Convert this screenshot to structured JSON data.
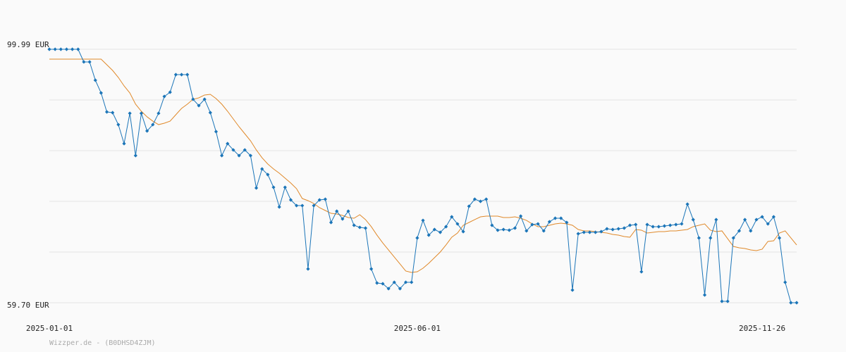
{
  "chart_data": {
    "type": "line",
    "source": "Wizzper.de - (B0DHSD4ZJM)",
    "categories": [
      "2025-01-01",
      null,
      null,
      null,
      null,
      null,
      null,
      null,
      null,
      null,
      null,
      null,
      null,
      null,
      null,
      null,
      null,
      null,
      null,
      null,
      null,
      null,
      null,
      null,
      null,
      null,
      null,
      null,
      null,
      null,
      null,
      null,
      null,
      null,
      null,
      null,
      null,
      null,
      null,
      null,
      null,
      null,
      null,
      null,
      null,
      null,
      null,
      null,
      null,
      null,
      null,
      null,
      null,
      null,
      null,
      null,
      null,
      null,
      null,
      null,
      null,
      null,
      null,
      null,
      "2025-06-01",
      null,
      null,
      null,
      null,
      null,
      null,
      null,
      null,
      null,
      null,
      null,
      null,
      null,
      null,
      null,
      null,
      null,
      null,
      null,
      null,
      null,
      null,
      null,
      null,
      null,
      null,
      null,
      null,
      null,
      null,
      null,
      null,
      null,
      null,
      null,
      null,
      null,
      null,
      null,
      null,
      null,
      null,
      null,
      null,
      null,
      null,
      null,
      null,
      null,
      null,
      null,
      null,
      null,
      null,
      null,
      null,
      null,
      null,
      null,
      "2025-11-26",
      null,
      null,
      null,
      null,
      null,
      null
    ],
    "series": [
      {
        "color": "#1b75b8",
        "markers": true,
        "values": [
          99.99,
          99.99,
          99.99,
          99.99,
          99.99,
          99.99,
          97.98,
          97.98,
          95.07,
          93.05,
          90.03,
          89.92,
          88.01,
          84.99,
          89.81,
          83.09,
          89.81,
          87.01,
          88.01,
          89.81,
          92.49,
          93.16,
          95.96,
          95.96,
          95.96,
          92.04,
          91.04,
          92.04,
          89.92,
          86.9,
          83.09,
          84.99,
          83.99,
          83.09,
          83.99,
          83.09,
          77.94,
          80.96,
          80.07,
          78.05,
          74.92,
          78.05,
          76.04,
          75.14,
          75.14,
          65.07,
          75.14,
          76.04,
          76.15,
          72.46,
          74.25,
          73.02,
          74.25,
          72.01,
          71.68,
          71.56,
          65.07,
          62.83,
          62.72,
          61.94,
          62.95,
          61.94,
          62.95,
          62.95,
          70.0,
          72.79,
          70.44,
          71.34,
          70.89,
          71.79,
          73.35,
          72.23,
          71.0,
          75.03,
          76.15,
          75.82,
          76.15,
          72.01,
          71.23,
          71.34,
          71.23,
          71.56,
          73.47,
          71.12,
          72.12,
          72.23,
          71.12,
          72.57,
          73.13,
          73.13,
          72.46,
          61.71,
          70.67,
          70.89,
          70.89,
          70.89,
          71.0,
          71.45,
          71.34,
          71.45,
          71.56,
          72.01,
          72.12,
          64.62,
          72.12,
          71.79,
          71.79,
          71.9,
          72.01,
          72.12,
          72.23,
          75.37,
          72.91,
          70.0,
          60.93,
          70.0,
          72.91,
          59.92,
          59.92,
          70.0,
          71.12,
          72.91,
          71.12,
          72.91,
          73.35,
          72.23,
          73.35,
          70.0,
          62.95,
          59.7,
          59.7
        ]
      },
      {
        "color": "#e0892a",
        "markers": false,
        "values": [
          98.42,
          98.42,
          98.42,
          98.42,
          98.42,
          98.42,
          98.42,
          98.42,
          98.42,
          98.42,
          97.53,
          96.63,
          95.51,
          94.17,
          93.05,
          91.26,
          90.14,
          89.25,
          88.57,
          88.01,
          88.24,
          88.57,
          89.58,
          90.59,
          91.26,
          92.04,
          92.27,
          92.72,
          92.83,
          92.16,
          91.26,
          90.14,
          88.91,
          87.68,
          86.56,
          85.44,
          83.99,
          82.75,
          81.75,
          80.96,
          80.29,
          79.51,
          78.73,
          77.83,
          76.26,
          75.93,
          75.48,
          74.81,
          74.36,
          73.91,
          73.8,
          73.58,
          73.24,
          73.13,
          73.69,
          72.91,
          71.79,
          70.44,
          69.21,
          68.09,
          66.97,
          65.86,
          64.74,
          64.51,
          64.62,
          65.18,
          65.97,
          66.86,
          67.76,
          68.88,
          70.11,
          70.78,
          72.01,
          72.46,
          72.91,
          73.35,
          73.47,
          73.47,
          73.47,
          73.24,
          73.24,
          73.35,
          73.13,
          72.79,
          72.23,
          71.79,
          71.79,
          72.01,
          72.23,
          72.35,
          72.23,
          72.01,
          71.34,
          71.12,
          71.12,
          71.0,
          70.89,
          70.78,
          70.56,
          70.44,
          70.22,
          70.11,
          71.34,
          71.23,
          70.78,
          70.89,
          71.0,
          71.0,
          71.12,
          71.12,
          71.23,
          71.34,
          71.79,
          72.01,
          72.23,
          71.23,
          71.0,
          71.12,
          69.88,
          68.65,
          68.43,
          68.32,
          68.09,
          67.98,
          68.21,
          69.44,
          69.55,
          70.78,
          71.12,
          70.0,
          68.88
        ]
      }
    ],
    "ylim": [
      59.7,
      99.99
    ],
    "yticks": [
      {
        "value": 59.7,
        "label": "59.70 EUR"
      },
      {
        "value": 67.758,
        "label": null
      },
      {
        "value": 75.816,
        "label": null
      },
      {
        "value": 83.874,
        "label": null
      },
      {
        "value": 91.932,
        "label": null
      },
      {
        "value": 99.99,
        "label": "99.99 EUR"
      }
    ],
    "grid": true
  }
}
